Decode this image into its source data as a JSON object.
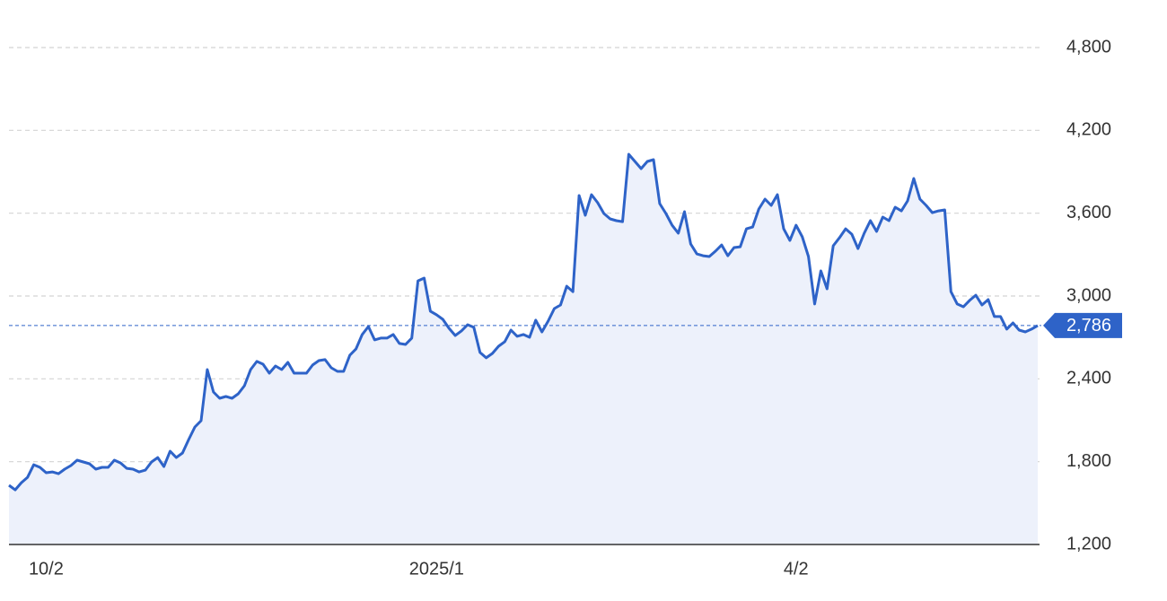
{
  "chart_data": {
    "type": "area",
    "categories": [
      null,
      null,
      null,
      null,
      null,
      null,
      "10/2",
      null,
      null,
      null,
      null,
      null,
      null,
      null,
      null,
      null,
      null,
      null,
      null,
      null,
      null,
      null,
      null,
      null,
      null,
      null,
      null,
      null,
      null,
      null,
      null,
      null,
      null,
      null,
      null,
      null,
      null,
      null,
      null,
      null,
      null,
      null,
      null,
      null,
      null,
      null,
      null,
      null,
      null,
      null,
      null,
      null,
      null,
      null,
      null,
      null,
      null,
      null,
      null,
      null,
      null,
      null,
      null,
      null,
      null,
      null,
      null,
      null,
      null,
      "2025/1",
      null,
      null,
      null,
      null,
      null,
      null,
      null,
      null,
      null,
      null,
      null,
      null,
      null,
      null,
      null,
      null,
      null,
      null,
      null,
      null,
      null,
      null,
      null,
      null,
      null,
      null,
      null,
      null,
      null,
      null,
      null,
      null,
      null,
      null,
      null,
      null,
      null,
      null,
      null,
      null,
      null,
      null,
      null,
      null,
      null,
      null,
      null,
      null,
      null,
      null,
      null,
      null,
      null,
      null,
      null,
      null,
      null,
      "4/2",
      null,
      null,
      null,
      null,
      null,
      null,
      null,
      null,
      null,
      null,
      null,
      null,
      null,
      null,
      null,
      null,
      null,
      null,
      null,
      null,
      null,
      null,
      null,
      null,
      null,
      null,
      null,
      null,
      null,
      null,
      null,
      null,
      null,
      null,
      null,
      null,
      null,
      null,
      null
    ],
    "series": [
      {
        "color": "#2e63c8",
        "fill": "#edf1fb",
        "values": [
          1629,
          1596,
          1648,
          1687,
          1778,
          1759,
          1720,
          1726,
          1713,
          1746,
          1772,
          1811,
          1798,
          1785,
          1746,
          1759,
          1759,
          1811,
          1791,
          1752,
          1746,
          1726,
          1739,
          1798,
          1830,
          1765,
          1876,
          1830,
          1863,
          1960,
          2051,
          2097,
          2467,
          2305,
          2259,
          2272,
          2259,
          2292,
          2350,
          2467,
          2526,
          2506,
          2441,
          2493,
          2467,
          2519,
          2441,
          2441,
          2441,
          2500,
          2532,
          2539,
          2480,
          2454,
          2454,
          2571,
          2617,
          2721,
          2779,
          2682,
          2695,
          2695,
          2721,
          2656,
          2649,
          2695,
          3110,
          3130,
          2890,
          2864,
          2831,
          2766,
          2714,
          2747,
          2792,
          2773,
          2591,
          2552,
          2584,
          2636,
          2669,
          2753,
          2708,
          2721,
          2701,
          2825,
          2740,
          2818,
          2909,
          2935,
          3071,
          3032,
          3728,
          3585,
          3734,
          3676,
          3598,
          3559,
          3546,
          3539,
          4027,
          3975,
          3923,
          3975,
          3988,
          3669,
          3598,
          3513,
          3455,
          3611,
          3377,
          3305,
          3292,
          3286,
          3325,
          3370,
          3292,
          3351,
          3357,
          3487,
          3500,
          3630,
          3702,
          3656,
          3734,
          3487,
          3403,
          3513,
          3429,
          3286,
          2942,
          3182,
          3052,
          3364,
          3422,
          3487,
          3448,
          3344,
          3455,
          3546,
          3468,
          3572,
          3546,
          3643,
          3617,
          3689,
          3851,
          3702,
          3656,
          3604,
          3617,
          3624,
          3032,
          2942,
          2922,
          2968,
          3006,
          2935,
          2974,
          2851,
          2851,
          2760,
          2805,
          2753,
          2740,
          2760,
          2786
        ],
        "value_labels": [
          null,
          null,
          null,
          null,
          null,
          null,
          null,
          null,
          null,
          null,
          null,
          null,
          null,
          null,
          null,
          null,
          null,
          null,
          null,
          null,
          null,
          null,
          null,
          null,
          null,
          null,
          null,
          null,
          null,
          null,
          null,
          null,
          null,
          null,
          null,
          null,
          null,
          null,
          null,
          null,
          null,
          null,
          null,
          null,
          null,
          null,
          null,
          null,
          null,
          null,
          null,
          null,
          null,
          null,
          null,
          null,
          null,
          null,
          null,
          null,
          null,
          null,
          null,
          null,
          null,
          null,
          null,
          null,
          null,
          null,
          null,
          null,
          null,
          null,
          null,
          null,
          null,
          null,
          null,
          null,
          null,
          null,
          null,
          null,
          null,
          null,
          null,
          null,
          null,
          null,
          null,
          null,
          null,
          null,
          null,
          null,
          null,
          null,
          null,
          null,
          null,
          null,
          null,
          null,
          null,
          null,
          null,
          null,
          null,
          null,
          null,
          null,
          null,
          null,
          null,
          null,
          null,
          null,
          null,
          null,
          null,
          null,
          null,
          null,
          null,
          null,
          null,
          null,
          null,
          null,
          null,
          null,
          null,
          null,
          null,
          null,
          null,
          null,
          null,
          null,
          null,
          null,
          null,
          null,
          null,
          null,
          null,
          null,
          null,
          null,
          null,
          null,
          null,
          null,
          null,
          null,
          null,
          null,
          null,
          null,
          null,
          null,
          null,
          null,
          null,
          null,
          "2,786"
        ]
      }
    ],
    "ylim": [
      1200,
      4800
    ],
    "yticks": [
      {
        "value": 1200,
        "label": "1,200"
      },
      {
        "value": 1800,
        "label": "1,800"
      },
      {
        "value": 2400,
        "label": "2,400"
      },
      {
        "value": 3000,
        "label": "3,000"
      },
      {
        "value": 3600,
        "label": "3,600"
      },
      {
        "value": 4200,
        "label": "4,200"
      },
      {
        "value": 4800,
        "label": "4,800"
      }
    ],
    "grid": true
  }
}
